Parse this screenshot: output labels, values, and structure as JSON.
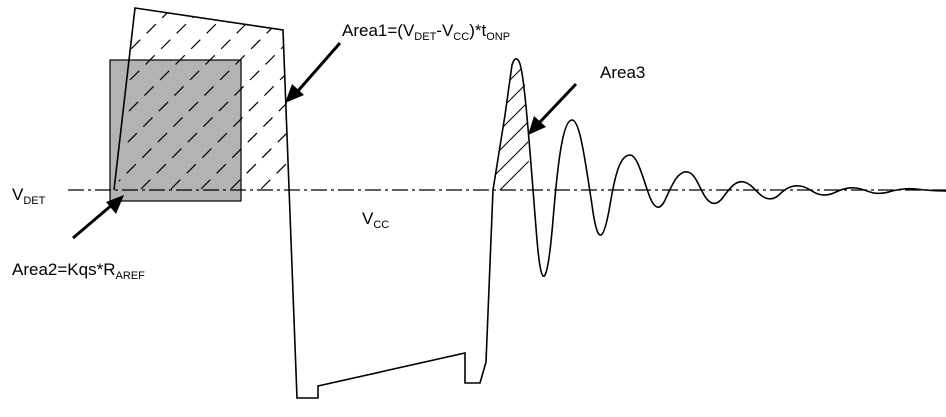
{
  "labels": {
    "area1": {
      "main": "Area1=(V",
      "s1": "DET",
      "mid1": "-V",
      "s2": "CC",
      "mid2": ")*t",
      "s3": "ONP"
    },
    "area2": {
      "main": "Area2=Kqs*R",
      "s1": "AREF"
    },
    "area3": {
      "main": "Area3"
    },
    "vdet": {
      "main": "V",
      "s1": "DET"
    },
    "vcc": {
      "main": "V",
      "s1": "CC"
    }
  },
  "colors": {
    "line": "#000000",
    "shaded_area": "#b3b3b3",
    "background": "#ffffff"
  }
}
